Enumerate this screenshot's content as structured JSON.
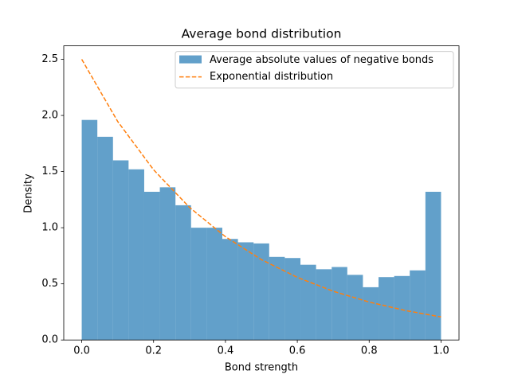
{
  "chart_data": {
    "type": "histogram",
    "title": "Average bond distribution",
    "xlabel": "Bond strength",
    "ylabel": "Density",
    "name": "Average absolute values of negative bonds",
    "color": "#1f77b4",
    "opacity": 0.7,
    "bins": [
      0,
      0.0435,
      0.087,
      0.1304,
      0.1739,
      0.2174,
      0.2609,
      0.3043,
      0.3478,
      0.3913,
      0.4348,
      0.4783,
      0.5217,
      0.5652,
      0.6087,
      0.6522,
      0.6957,
      0.7391,
      0.7826,
      0.8261,
      0.8696,
      0.913,
      0.9565,
      1
    ],
    "values": [
      1.96,
      1.81,
      1.6,
      1.52,
      1.32,
      1.36,
      1.2,
      1.0,
      1.0,
      0.9,
      0.87,
      0.86,
      0.74,
      0.73,
      0.67,
      0.63,
      0.65,
      0.58,
      0.47,
      0.56,
      0.57,
      0.62,
      1.32
    ],
    "overlay": {
      "type": "line",
      "name": "Exponential distribution",
      "color": "#ff7f0e",
      "dashed": true,
      "x": [
        0,
        0.1,
        0.2,
        0.3,
        0.4,
        0.5,
        0.6,
        0.7,
        0.8,
        0.9,
        1
      ],
      "values": [
        2.5,
        1.947,
        1.516,
        1.181,
        0.92,
        0.716,
        0.558,
        0.434,
        0.338,
        0.263,
        0.205
      ]
    },
    "xlim": [
      -0.05,
      1.05
    ],
    "ylim": [
      0,
      2.62
    ],
    "xticks": [
      {
        "value": 0,
        "label": "0.0"
      },
      0.2,
      0.4,
      0.6,
      0.8,
      {
        "value": 1,
        "label": "1.0"
      }
    ],
    "yticks": [
      {
        "value": 0,
        "label": "0.0"
      },
      0.5,
      {
        "value": 1,
        "label": "1.0"
      },
      1.5,
      {
        "value": 2,
        "label": "2.0"
      },
      2.5
    ],
    "legend": "upper right"
  }
}
